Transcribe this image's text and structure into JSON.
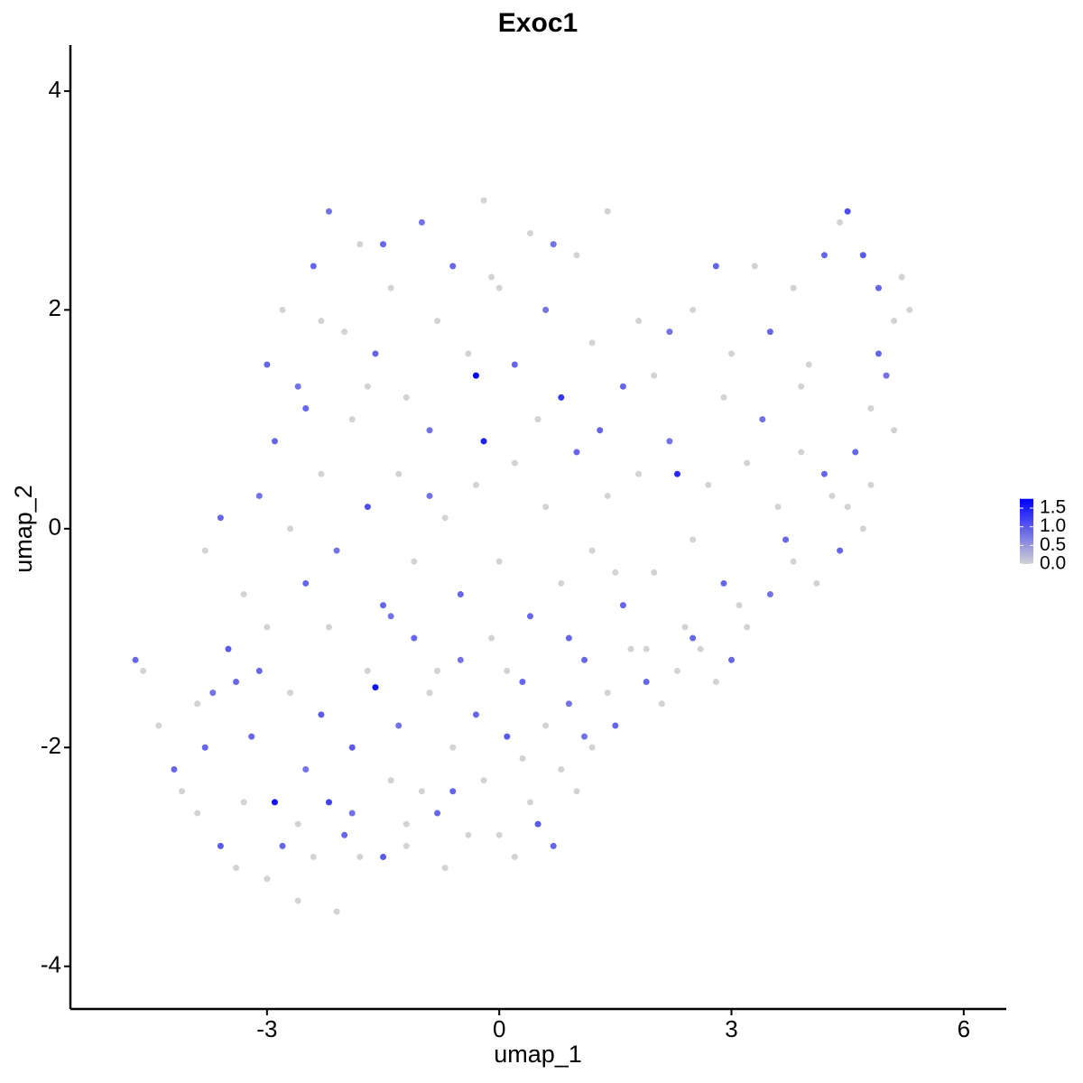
{
  "chart_data": {
    "type": "scatter",
    "title": "Exoc1",
    "xlabel": "umap_1",
    "ylabel": "umap_2",
    "xlim": [
      -5.54,
      6.55
    ],
    "ylim": [
      -4.39,
      4.42
    ],
    "xticks": [
      -3,
      0,
      3,
      6
    ],
    "yticks": [
      -4,
      -2,
      0,
      2,
      4
    ],
    "color_low": "#d3d3d3",
    "color_high": "#0000ff",
    "colorbar_lim": [
      0,
      1.75
    ],
    "colorbar_ticks": [
      {
        "value": 0,
        "label": "0.0"
      },
      0.5,
      {
        "value": 1,
        "label": "1.0"
      },
      1.5
    ],
    "x": [
      -4.7,
      -4.6,
      -4.4,
      -4.2,
      -4.1,
      -3.9,
      -3.8,
      -3.6,
      -3.7,
      -3.5,
      -3.4,
      -3.3,
      -3.2,
      -3.0,
      -2.9,
      -2.8,
      -2.7,
      -2.6,
      -2.5,
      -2.4,
      -2.3,
      -2.2,
      -2.1,
      -2.0,
      -1.9,
      -1.8,
      -1.7,
      -1.6,
      -1.5,
      -1.4,
      -1.3,
      -1.2,
      -1.1,
      -1.0,
      -0.9,
      -0.8,
      -0.7,
      -0.6,
      -0.5,
      -0.4,
      -0.3,
      -0.2,
      -0.1,
      0.0,
      0.1,
      0.2,
      0.3,
      0.4,
      0.5,
      0.6,
      0.7,
      0.8,
      0.9,
      1.0,
      1.1,
      1.2,
      1.4,
      1.5,
      1.7,
      1.9,
      2.1,
      2.3,
      2.5,
      2.8,
      3.0,
      3.2,
      3.5,
      3.8,
      4.1,
      4.4,
      4.7,
      -3.8,
      -3.6,
      -3.3,
      -3.1,
      -3.0,
      -2.9,
      -2.7,
      -2.5,
      -2.3,
      -2.1,
      -1.9,
      -1.7,
      -1.5,
      -1.3,
      -1.1,
      -0.9,
      -0.7,
      -0.5,
      -0.3,
      -0.2,
      0.0,
      0.2,
      0.4,
      0.6,
      0.8,
      1.0,
      1.2,
      1.4,
      1.6,
      1.8,
      2.0,
      2.2,
      2.3,
      2.5,
      2.7,
      2.9,
      3.2,
      3.4,
      3.6,
      3.9,
      4.2,
      4.5,
      4.8,
      5.1,
      -3.0,
      -2.8,
      -2.6,
      -2.4,
      -2.2,
      -2.0,
      -1.8,
      -1.6,
      -1.4,
      -1.2,
      -1.0,
      -0.8,
      -0.6,
      -0.4,
      -0.3,
      -0.2,
      0.0,
      0.2,
      0.4,
      0.6,
      0.8,
      1.0,
      1.2,
      1.4,
      1.6,
      1.8,
      2.0,
      2.2,
      2.5,
      2.8,
      3.0,
      3.3,
      3.5,
      3.8,
      4.0,
      4.2,
      4.4,
      4.5,
      4.7,
      4.9,
      5.1,
      5.2,
      5.0,
      4.8,
      4.6,
      5.3,
      -3.4,
      -2.6,
      -1.9,
      -1.2,
      -0.6,
      0.3,
      1.1,
      1.9,
      2.6,
      3.1,
      3.7,
      4.3,
      -3.9,
      -3.1,
      -2.2,
      -1.4,
      -0.8,
      0.1,
      0.9,
      1.5,
      2.4,
      -2.5,
      -1.7,
      -0.9,
      0.5,
      1.3,
      2.9,
      3.9,
      4.9,
      -2.3,
      -1.5,
      -0.1,
      0.7
    ],
    "values": [
      -1.2,
      -1.3,
      -1.8,
      -2.2,
      -2.4,
      -2.6,
      -2.0,
      -2.9,
      -1.5,
      -1.1,
      -3.1,
      -2.5,
      -1.9,
      -3.2,
      -2.5,
      -2.9,
      -1.5,
      -3.4,
      -2.2,
      -3.0,
      -1.7,
      -2.5,
      -3.5,
      -2.8,
      -2.0,
      -3.0,
      -1.3,
      -1.45,
      -3.0,
      -2.3,
      -1.8,
      -2.9,
      -1.0,
      -2.4,
      -1.5,
      -2.6,
      -3.1,
      -2.0,
      -1.2,
      -2.8,
      -1.7,
      -2.3,
      -1.0,
      -2.8,
      -1.9,
      -3.0,
      -1.4,
      -2.5,
      -2.7,
      -1.8,
      -2.9,
      -2.2,
      -1.6,
      -2.4,
      -1.2,
      -2.0,
      -1.5,
      -1.8,
      -1.1,
      -1.4,
      -1.6,
      -1.3,
      -1.0,
      -1.4,
      -1.2,
      -0.9,
      -0.6,
      -0.3,
      -0.5,
      -0.2,
      0.0,
      -0.2,
      0.1,
      -0.6,
      0.3,
      -0.9,
      0.8,
      0.0,
      -0.5,
      0.5,
      -0.2,
      1.0,
      0.2,
      -0.7,
      0.5,
      -0.3,
      0.9,
      0.1,
      -0.6,
      0.4,
      0.8,
      -0.3,
      0.6,
      -0.8,
      0.2,
      -0.5,
      0.7,
      -0.2,
      0.3,
      -0.7,
      0.5,
      -0.4,
      0.8,
      0.5,
      -0.1,
      0.4,
      -0.5,
      0.6,
      1.0,
      0.2,
      0.7,
      0.5,
      0.2,
      0.4,
      0.9,
      1.5,
      2.0,
      1.3,
      2.4,
      2.9,
      1.8,
      2.6,
      1.6,
      2.2,
      1.2,
      2.8,
      1.9,
      2.4,
      1.6,
      1.4,
      3.0,
      2.2,
      1.5,
      2.7,
      2.0,
      1.2,
      2.5,
      1.7,
      2.9,
      1.3,
      1.9,
      1.4,
      1.8,
      2.0,
      2.4,
      1.6,
      2.4,
      1.8,
      2.2,
      1.5,
      2.5,
      2.8,
      2.9,
      2.5,
      2.2,
      1.9,
      2.3,
      1.4,
      1.1,
      0.7,
      2.0,
      -1.4,
      -2.7,
      -2.6,
      -2.7,
      -2.4,
      -2.1,
      -1.9,
      -1.1,
      -1.1,
      -0.7,
      -0.1,
      0.3,
      -1.6,
      -1.3,
      -0.9,
      -0.8,
      -1.3,
      -1.3,
      -1.0,
      -0.4,
      -0.9,
      1.1,
      1.3,
      0.3,
      1.0,
      0.9,
      1.2,
      1.3,
      1.6,
      1.9,
      2.6,
      2.3,
      2.6
    ],
    "expression": [
      0.9,
      0,
      0,
      0.9,
      0,
      0,
      0.9,
      1.0,
      0.8,
      1.0,
      0,
      0,
      0.9,
      0,
      1.6,
      0.9,
      0,
      0,
      0.8,
      0,
      1.0,
      1.2,
      0,
      0.9,
      1.0,
      0,
      0,
      1.6,
      1.0,
      0,
      0.8,
      0,
      0.9,
      0,
      0,
      0.9,
      0,
      0,
      0.8,
      0,
      0.9,
      0,
      0,
      0,
      1.0,
      0,
      0.9,
      0,
      1.0,
      0,
      0.9,
      0,
      0.8,
      0,
      0.9,
      0,
      0,
      0.9,
      0,
      0.9,
      0,
      0,
      0.9,
      0,
      0.9,
      0,
      0.8,
      0,
      0,
      0.9,
      0,
      0,
      0.9,
      0,
      0.8,
      0,
      0.9,
      0,
      0.9,
      0,
      0.8,
      0,
      1.1,
      0.9,
      0,
      0,
      0.8,
      0,
      0.9,
      0,
      1.5,
      0,
      0,
      0.9,
      0,
      0,
      0.9,
      0,
      0,
      0.9,
      0,
      0,
      0.8,
      1.4,
      0,
      0,
      0.9,
      0,
      0.8,
      0,
      0,
      0.9,
      0,
      0,
      0,
      0.9,
      0,
      0.8,
      0.9,
      0.8,
      0,
      0,
      0.9,
      0,
      0,
      0.8,
      0,
      0.9,
      0,
      1.7,
      0,
      0,
      0.9,
      0,
      0.8,
      1.3,
      0,
      0,
      0,
      0.9,
      0,
      0,
      0.8,
      0,
      0.9,
      0,
      0,
      0.9,
      0,
      0,
      0.9,
      0,
      1.1,
      1.0,
      0.9,
      0,
      0,
      0.8,
      0,
      0.9,
      0,
      0.9,
      0,
      0.8,
      0,
      0.9,
      0,
      0.8,
      0,
      0,
      0,
      0.9,
      0,
      0,
      0.9,
      0,
      0.8,
      0,
      0,
      0.9,
      0,
      0,
      0.9,
      0,
      0.8,
      0,
      0.9,
      0,
      0,
      0.9,
      0,
      0.9,
      0,
      0.8
    ]
  }
}
